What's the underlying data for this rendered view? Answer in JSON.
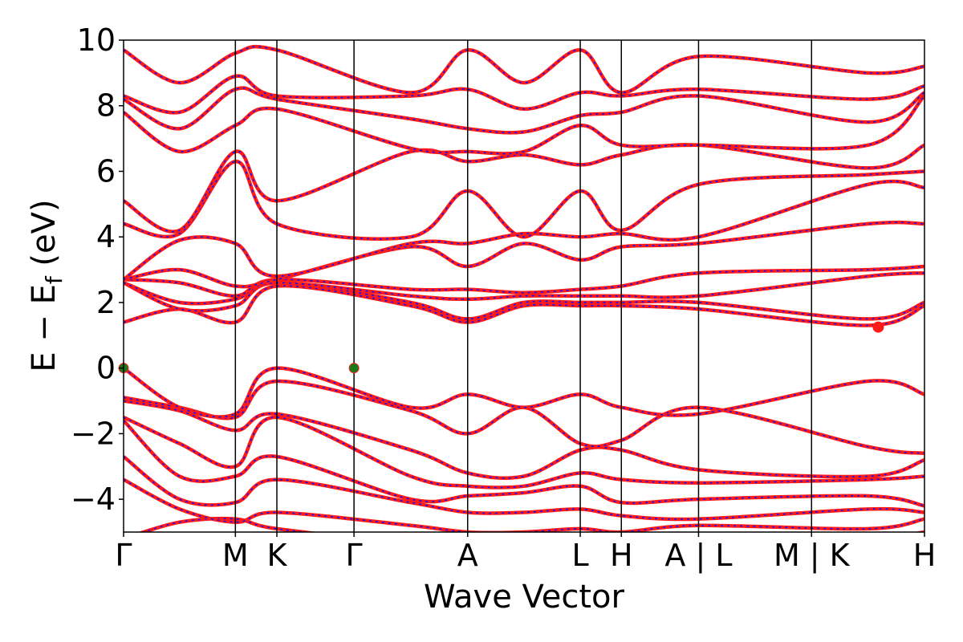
{
  "chart_data": {
    "type": "line",
    "xlabel": "Wave Vector",
    "ylabel_main": "E − E",
    "ylabel_sub": "f",
    "ylabel_unit": " (eV)",
    "ylim": [
      -5,
      10
    ],
    "yticks": [
      {
        "value": 10,
        "label": "10"
      },
      {
        "value": 8,
        "label": "8"
      },
      {
        "value": 6,
        "label": "6"
      },
      {
        "value": 4,
        "label": "4"
      },
      {
        "value": 2,
        "label": "2"
      },
      {
        "value": 0,
        "label": "0"
      },
      {
        "value": -2,
        "label": "−2"
      },
      {
        "value": -4,
        "label": "−4"
      }
    ],
    "kpath_ticks": [
      {
        "label": "Γ",
        "pos": 0.0
      },
      {
        "label": "M",
        "pos": 0.1396
      },
      {
        "label": "K",
        "pos": 0.1914
      },
      {
        "label": "Γ",
        "pos": 0.2877
      },
      {
        "label": "A",
        "pos": 0.4296
      },
      {
        "label": "L",
        "pos": 0.5702
      },
      {
        "label": "H",
        "pos": 0.6215
      },
      {
        "label": "A | L",
        "pos": 0.7179
      },
      {
        "label": "M | K",
        "pos": 0.859
      },
      {
        "label": "H",
        "pos": 1.0
      }
    ],
    "colors": {
      "band": "#ff1a1a",
      "band_overlay": "#1010ff",
      "vbm": "#1a7a1a",
      "cbm": "#ff1a1a"
    },
    "vbm_points": [
      {
        "k": 0.0,
        "energy": 0.0
      },
      {
        "k": 0.2877,
        "energy": 0.0
      }
    ],
    "cbm_points": [
      {
        "k": 0.9423,
        "energy": 1.25
      }
    ],
    "bands": [
      [
        -5.2,
        -4.7,
        -4.6,
        -4.9,
        -5.3,
        -5.1,
        -5.3,
        -5.2,
        -5.4,
        -5.3,
        -5.2,
        -5.0
      ],
      [
        -3.4,
        -4.3,
        -4.7,
        -4.4,
        -4.8,
        -5.0,
        -5.0,
        -4.9,
        -5.0,
        -4.8,
        -4.9,
        -4.6
      ],
      [
        -2.7,
        -4.0,
        -4.1,
        -3.4,
        -4.1,
        -4.4,
        -4.4,
        -4.3,
        -4.5,
        -4.6,
        -4.3,
        -4.4
      ],
      [
        -1.6,
        -3.3,
        -3.3,
        -2.7,
        -4.0,
        -3.9,
        -3.8,
        -3.6,
        -4.1,
        -4.0,
        -3.9,
        -4.2
      ],
      [
        -1.5,
        -2.3,
        -3.0,
        -1.5,
        -3.3,
        -3.6,
        -3.6,
        -3.2,
        -3.4,
        -3.5,
        -3.4,
        -3.3
      ],
      [
        -1.0,
        -1.3,
        -1.9,
        -1.4,
        -2.5,
        -3.2,
        -3.3,
        -2.5,
        -2.5,
        -3.1,
        -3.3,
        -2.8
      ],
      [
        -0.9,
        -1.2,
        -1.5,
        -0.4,
        -1.3,
        -2.0,
        -1.2,
        -2.3,
        -2.2,
        -1.2,
        -2.4,
        -2.6
      ],
      [
        0.0,
        -1.2,
        -1.4,
        0.0,
        -1.2,
        -0.8,
        -1.2,
        -0.8,
        -1.2,
        -1.4,
        -0.4,
        -0.8
      ],
      [
        1.4,
        1.8,
        1.4,
        2.5,
        1.9,
        1.4,
        1.9,
        1.9,
        1.9,
        1.8,
        1.3,
        1.9
      ],
      [
        2.6,
        1.8,
        1.9,
        2.6,
        2.0,
        1.5,
        2.0,
        2.0,
        2.0,
        2.0,
        1.5,
        2.0
      ],
      [
        2.6,
        2.0,
        2.1,
        2.6,
        2.2,
        2.1,
        2.2,
        2.2,
        2.2,
        2.2,
        2.8,
        2.9
      ],
      [
        2.7,
        2.6,
        2.2,
        2.7,
        2.4,
        2.4,
        2.3,
        2.4,
        2.5,
        2.9,
        3.0,
        3.1
      ],
      [
        2.7,
        3.0,
        2.5,
        2.7,
        3.7,
        3.1,
        3.8,
        3.3,
        3.7,
        3.8,
        4.4,
        4.4
      ],
      [
        2.7,
        3.9,
        3.8,
        2.8,
        3.8,
        3.8,
        4.1,
        4.0,
        4.1,
        4.0,
        5.6,
        5.5
      ],
      [
        4.4,
        4.1,
        6.3,
        4.4,
        4.0,
        5.4,
        4.0,
        5.4,
        4.2,
        5.6,
        5.9,
        6.0
      ],
      [
        5.1,
        4.2,
        6.6,
        5.1,
        6.6,
        6.3,
        6.5,
        6.2,
        6.5,
        6.8,
        6.1,
        6.8
      ],
      [
        7.8,
        6.6,
        7.4,
        7.9,
        6.7,
        6.6,
        6.6,
        7.4,
        6.8,
        6.8,
        6.8,
        8.3
      ],
      [
        8.2,
        7.3,
        8.5,
        8.2,
        7.6,
        7.3,
        7.2,
        7.7,
        7.8,
        8.3,
        7.5,
        8.4
      ],
      [
        8.3,
        7.8,
        8.9,
        8.3,
        8.3,
        8.5,
        7.9,
        8.4,
        8.3,
        8.5,
        8.2,
        8.6
      ],
      [
        9.7,
        8.7,
        9.6,
        9.7,
        8.4,
        9.7,
        8.7,
        9.7,
        8.4,
        9.5,
        9.0,
        9.2
      ]
    ]
  }
}
